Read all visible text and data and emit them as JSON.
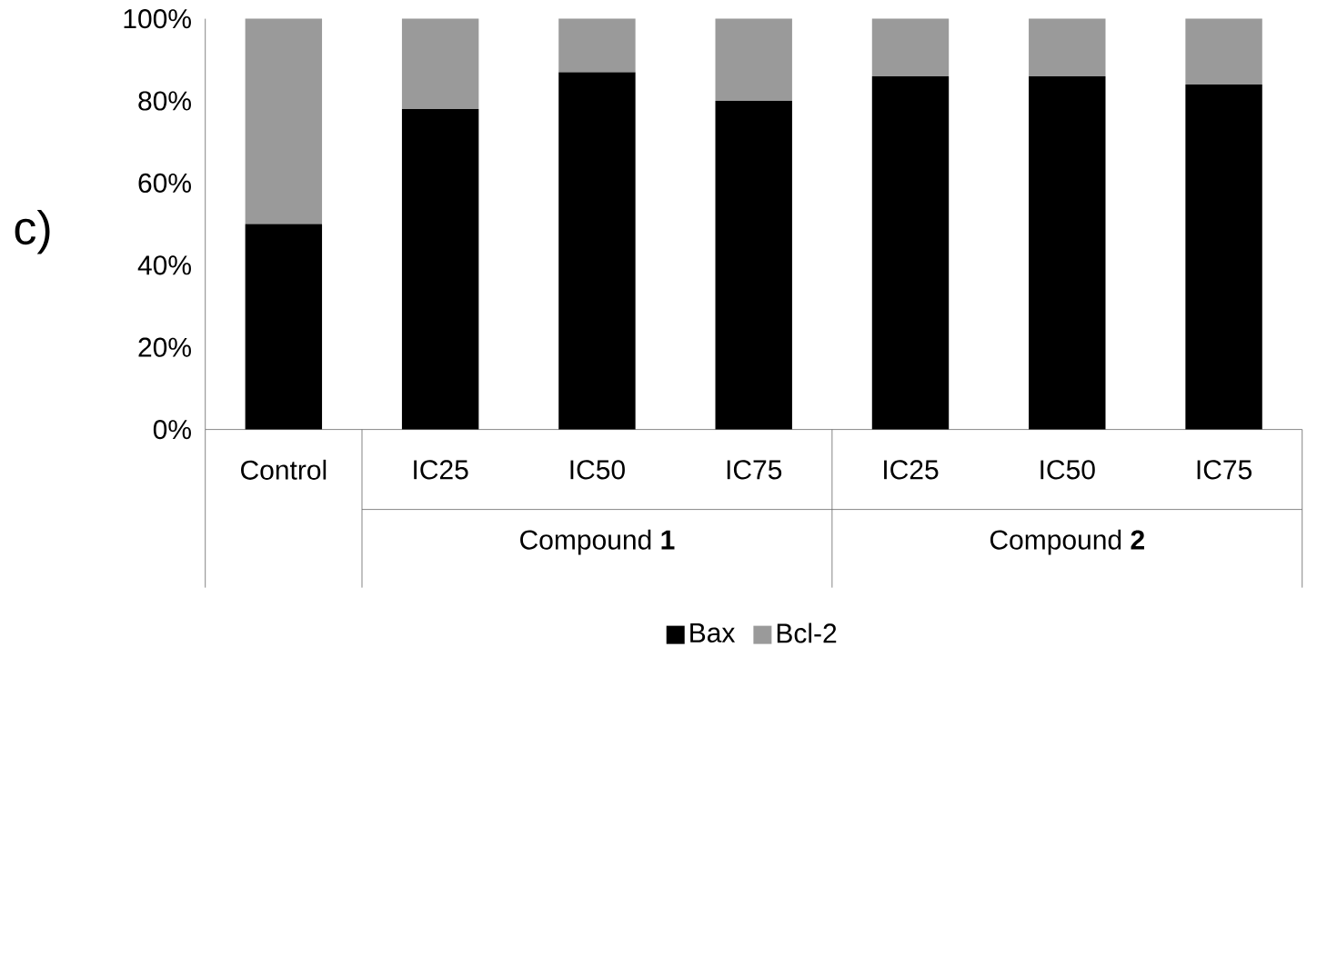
{
  "chart_data": {
    "type": "bar",
    "stacked": true,
    "title": "c)",
    "categories": [
      "Control",
      "IC25",
      "IC50",
      "IC75",
      "IC25",
      "IC50",
      "IC75"
    ],
    "annotations": [
      "Compound **1**",
      "Compound **2**"
    ],
    "series": [
      {
        "name": "Bax",
        "color": "#000000",
        "values": [
          50,
          78,
          87,
          80,
          86,
          86,
          84
        ]
      },
      {
        "name": "Bcl-2",
        "color": "#9a9a9a",
        "values": [
          50,
          22,
          13,
          20,
          14,
          14,
          16
        ]
      }
    ],
    "ylim": [
      0,
      100
    ],
    "yticks": [
      {
        "value": 0,
        "label": "0%"
      },
      {
        "value": 20,
        "label": "20%"
      },
      {
        "value": 40,
        "label": "40%"
      },
      {
        "value": 60,
        "label": "60%"
      },
      {
        "value": 80,
        "label": "80%"
      },
      {
        "value": 100,
        "label": "100%"
      }
    ],
    "grid": false,
    "legend": "bottom"
  }
}
